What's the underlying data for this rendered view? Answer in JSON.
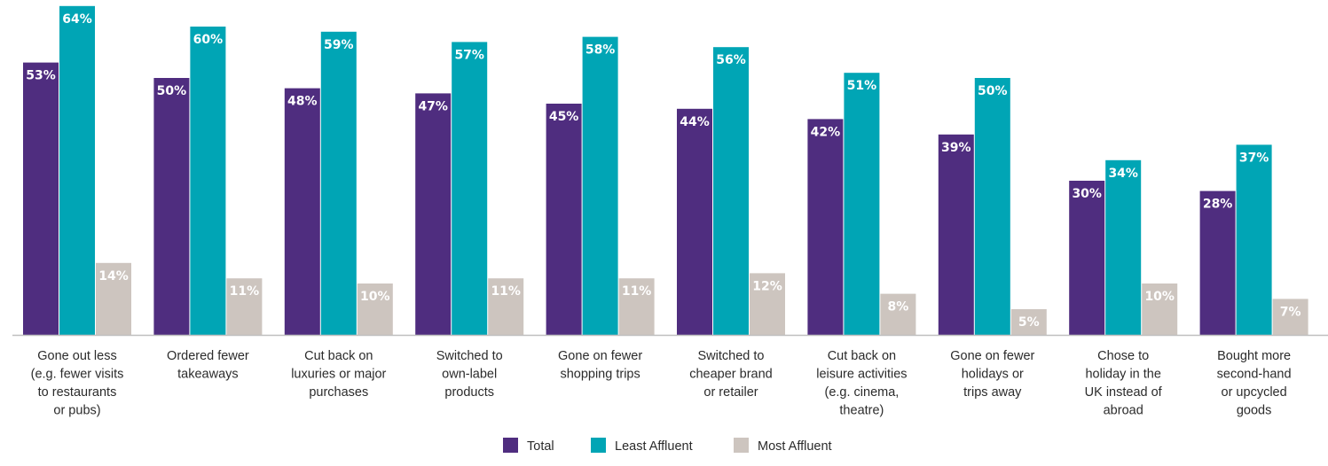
{
  "chart_data": {
    "type": "bar",
    "categories": [
      [
        "Gone out less",
        "(e.g. fewer visits",
        "to restaurants",
        "or pubs)"
      ],
      [
        "Ordered fewer",
        "takeaways"
      ],
      [
        "Cut back on",
        "luxuries or major",
        "purchases"
      ],
      [
        "Switched to",
        "own-label",
        "products"
      ],
      [
        "Gone on fewer",
        "shopping trips"
      ],
      [
        "Switched to",
        "cheaper brand",
        "or retailer"
      ],
      [
        "Cut back on",
        "leisure activities",
        "(e.g. cinema,",
        "theatre)"
      ],
      [
        "Gone on fewer",
        "holidays or",
        "trips away"
      ],
      [
        "Chose to",
        "holiday in the",
        "UK instead of",
        "abroad"
      ],
      [
        "Bought more",
        "second-hand",
        "or upcycled",
        "goods"
      ]
    ],
    "series": [
      {
        "name": "Total",
        "color": "#4f2d7f",
        "values": [
          53,
          50,
          48,
          47,
          45,
          44,
          42,
          39,
          30,
          28
        ]
      },
      {
        "name": "Least Affluent",
        "color": "#00a5b5",
        "values": [
          64,
          60,
          59,
          57,
          58,
          56,
          51,
          50,
          34,
          37
        ]
      },
      {
        "name": "Most Affluent",
        "color": "#cdc5bf",
        "values": [
          14,
          11,
          10,
          11,
          11,
          12,
          8,
          5,
          10,
          7
        ]
      }
    ],
    "value_suffix": "%",
    "ylim": [
      0,
      66
    ],
    "grid": false,
    "legend": "bottom-center"
  }
}
